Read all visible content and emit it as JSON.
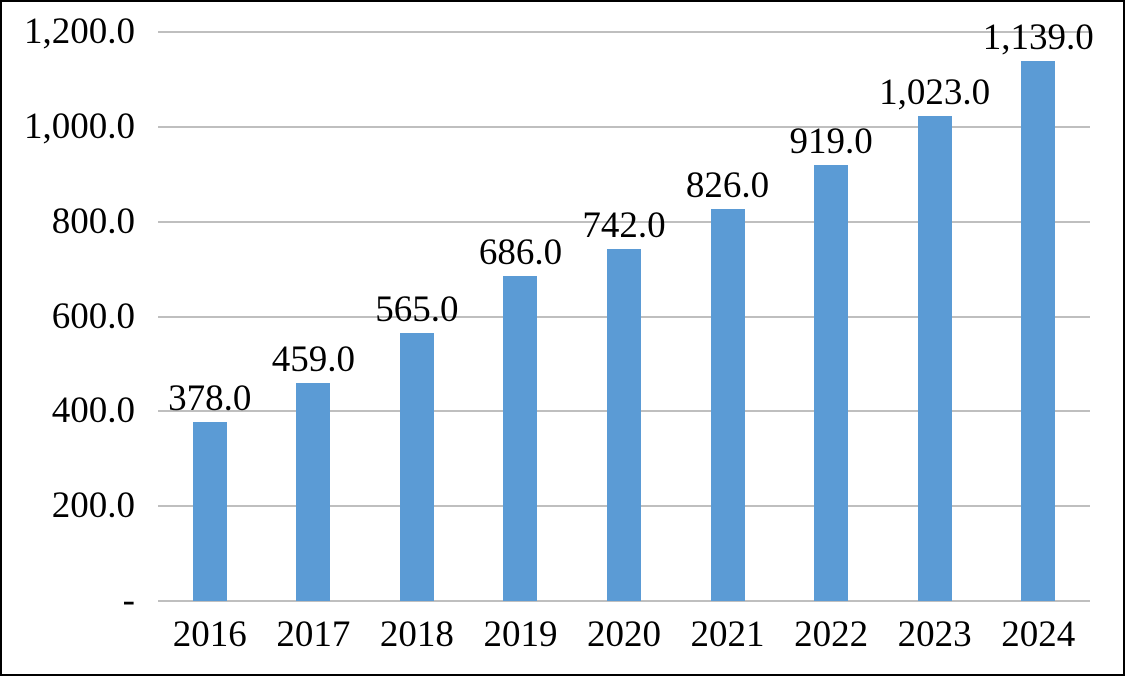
{
  "chart_data": {
    "type": "bar",
    "categories": [
      "2016",
      "2017",
      "2018",
      "2019",
      "2020",
      "2021",
      "2022",
      "2023",
      "2024"
    ],
    "values": [
      378,
      459,
      565,
      686,
      742,
      826,
      919,
      1023,
      1139
    ],
    "data_labels": [
      "378.0",
      "459.0",
      "565.0",
      "686.0",
      "742.0",
      "826.0",
      "919.0",
      "1,023.0",
      "1,139.0"
    ],
    "series_name": "",
    "title": "",
    "xlabel": "",
    "ylabel": "",
    "ylim": [
      0,
      1200
    ],
    "y_ticks": [
      {
        "value": 1200,
        "label": "1,200.0"
      },
      {
        "value": 1000,
        "label": "1,000.0"
      },
      {
        "value": 800,
        "label": "800.0"
      },
      {
        "value": 600,
        "label": "600.0"
      },
      {
        "value": 400,
        "label": "400.0"
      },
      {
        "value": 200,
        "label": "200.0"
      },
      {
        "value": 0,
        "label": "-"
      }
    ],
    "grid": true,
    "legend_position": "none",
    "colors": {
      "bar_fill": "#5b9bd5",
      "gridline": "#bfbfbf",
      "text": "#000000",
      "frame_border": "#000000",
      "background": "#ffffff"
    }
  }
}
